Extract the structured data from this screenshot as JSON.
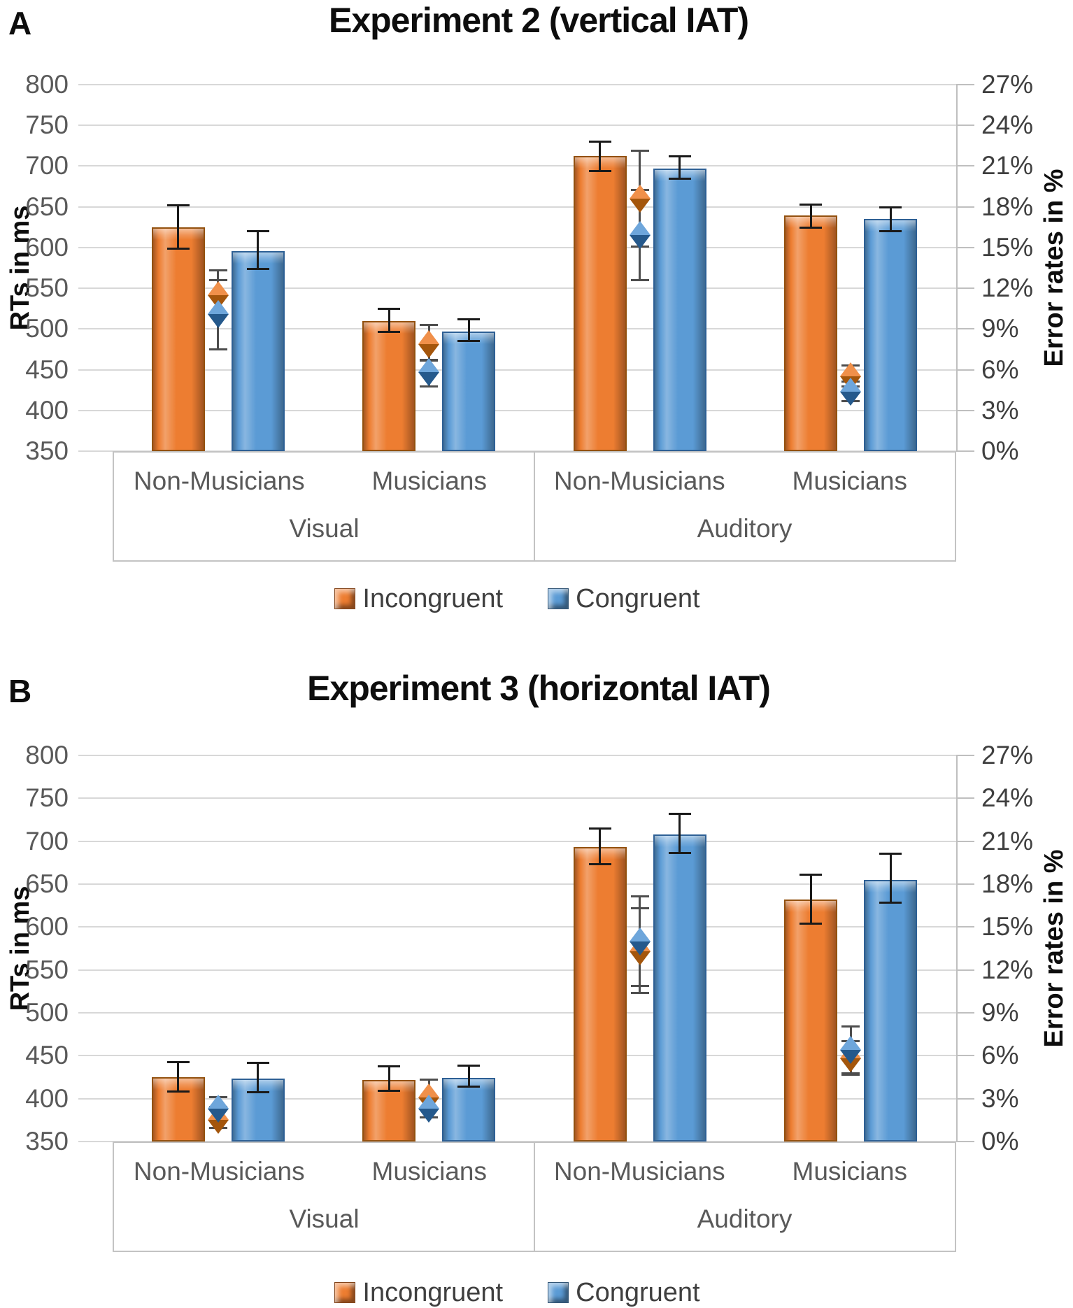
{
  "colors": {
    "incongruent": "#ED7D31",
    "incongruent_dark": "#93510F",
    "congruent": "#5B9BD5",
    "congruent_dark": "#2E6095",
    "gridline": "#D8D8D8",
    "axis_line": "#BFBFBF",
    "tick_text": "#595959",
    "bar_error_bar": "#1A1A1A",
    "marker_error_bar": "#4D4D4D",
    "title_text": "#0D0D0D"
  },
  "chart_data": [
    {
      "type": "bar",
      "panel_label": "A",
      "title": "Experiment 2 (vertical IAT)",
      "legend": [
        "Incongruent",
        "Congruent"
      ],
      "y_left": {
        "label": "RTs in ms",
        "min": 350,
        "max": 800,
        "step": 50,
        "tick_labels": [
          "800",
          "750",
          "700",
          "650",
          "600",
          "550",
          "500",
          "450",
          "400",
          "350"
        ]
      },
      "y_right": {
        "label": "Error rates in %",
        "min": 0,
        "max": 27,
        "step": 3,
        "tick_labels": [
          "27%",
          "24%",
          "21%",
          "18%",
          "15%",
          "12%",
          "9%",
          "6%",
          "3%",
          "0%"
        ]
      },
      "group_labels": [
        "Visual",
        "Auditory"
      ],
      "category_labels": [
        "Non-Musicians",
        "Musicians",
        "Non-Musicians",
        "Musicians"
      ],
      "bars_rt_ms": {
        "series": [
          {
            "name": "Incongruent",
            "values": [
              625,
              510,
              712,
              639
            ],
            "err_lo": [
              597,
              495,
              693,
              623
            ],
            "err_hi": [
              653,
              526,
              731,
              654
            ]
          },
          {
            "name": "Congruent",
            "values": [
              596,
              497,
              697,
              635
            ],
            "err_lo": [
              572,
              484,
              683,
              619
            ],
            "err_hi": [
              621,
              513,
              713,
              651
            ]
          }
        ]
      },
      "markers_error_rate_pct": {
        "series": [
          {
            "name": "Incongruent",
            "values": [
              11.5,
              7.9,
              18.6,
              5.5
            ],
            "err_lo": [
              10.0,
              6.6,
              15.0,
              4.7
            ],
            "err_hi": [
              13.4,
              9.4,
              22.2,
              6.4
            ]
          },
          {
            "name": "Congruent",
            "values": [
              10.1,
              5.8,
              15.9,
              4.4
            ],
            "err_lo": [
              7.4,
              4.7,
              12.5,
              3.6
            ],
            "err_hi": [
              12.7,
              6.8,
              19.3,
              5.2
            ]
          }
        ]
      }
    },
    {
      "type": "bar",
      "panel_label": "B",
      "title": "Experiment 3 (horizontal IAT)",
      "legend": [
        "Incongruent",
        "Congruent"
      ],
      "y_left": {
        "label": "RTs in ms",
        "min": 350,
        "max": 800,
        "step": 50,
        "tick_labels": [
          "800",
          "750",
          "700",
          "650",
          "600",
          "550",
          "500",
          "450",
          "400",
          "350"
        ]
      },
      "y_right": {
        "label": "Error rates in %",
        "min": 0,
        "max": 27,
        "step": 3,
        "tick_labels": [
          "27%",
          "24%",
          "21%",
          "18%",
          "15%",
          "12%",
          "9%",
          "6%",
          "3%",
          "0%"
        ]
      },
      "group_labels": [
        "Visual",
        "Auditory"
      ],
      "category_labels": [
        "Non-Musicians",
        "Musicians",
        "Non-Musicians",
        "Musicians"
      ],
      "bars_rt_ms": {
        "series": [
          {
            "name": "Incongruent",
            "values": [
              425,
              422,
              693,
              632
            ],
            "err_lo": [
              407,
              408,
              672,
              603
            ],
            "err_hi": [
              444,
              439,
              716,
              662
            ]
          },
          {
            "name": "Congruent",
            "values": [
              423,
              424,
              708,
              655
            ],
            "err_lo": [
              406,
              413,
              685,
              627
            ],
            "err_hi": [
              443,
              440,
              733,
              687
            ]
          }
        ]
      },
      "markers_error_rate_pct": {
        "series": [
          {
            "name": "Incongruent",
            "values": [
              1.5,
              3.1,
              13.3,
              5.8
            ],
            "err_lo": [
              0.9,
              2.3,
              10.3,
              4.6
            ],
            "err_hi": [
              2.5,
              4.4,
              16.4,
              7.1
            ]
          },
          {
            "name": "Congruent",
            "values": [
              2.3,
              2.3,
              14.0,
              6.4
            ],
            "err_lo": [
              1.5,
              1.6,
              10.8,
              4.7
            ],
            "err_hi": [
              3.2,
              3.1,
              17.2,
              8.1
            ]
          }
        ]
      }
    }
  ]
}
